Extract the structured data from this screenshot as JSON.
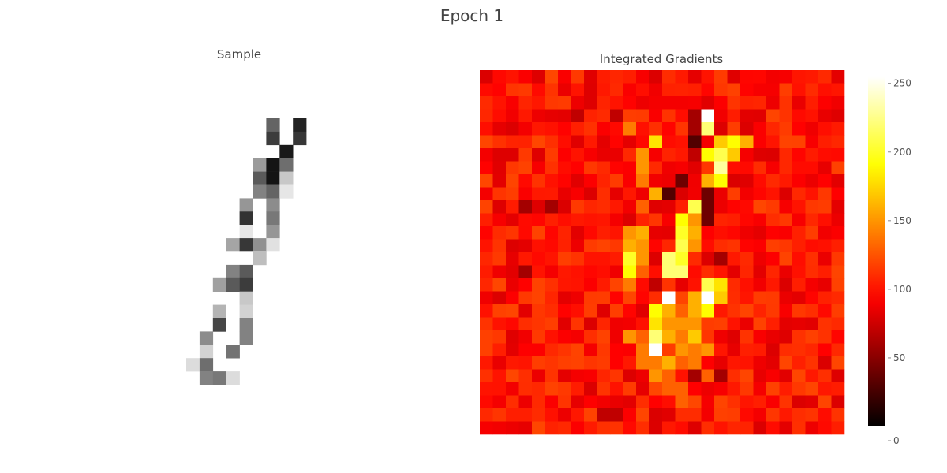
{
  "title": "Epoch 1",
  "chart_data": [
    {
      "type": "heatmap",
      "title": "Sample",
      "colormap": "greys-reversed-partial",
      "background": "#ffffff",
      "grid_size": 28,
      "cells": [
        [
          3,
          6,
          100
        ],
        [
          3,
          8,
          35
        ],
        [
          4,
          6,
          60
        ],
        [
          4,
          8,
          55
        ],
        [
          5,
          7,
          25
        ],
        [
          6,
          5,
          155
        ],
        [
          6,
          6,
          20
        ],
        [
          6,
          7,
          110
        ],
        [
          7,
          5,
          90
        ],
        [
          7,
          6,
          20
        ],
        [
          7,
          7,
          200
        ],
        [
          8,
          5,
          130
        ],
        [
          8,
          6,
          100
        ],
        [
          8,
          7,
          230
        ],
        [
          9,
          4,
          150
        ],
        [
          9,
          6,
          140
        ],
        [
          10,
          4,
          50
        ],
        [
          10,
          6,
          120
        ],
        [
          11,
          4,
          230
        ],
        [
          11,
          6,
          150
        ],
        [
          12,
          3,
          165
        ],
        [
          12,
          4,
          55
        ],
        [
          12,
          5,
          145
        ],
        [
          12,
          6,
          225
        ],
        [
          13,
          5,
          190
        ],
        [
          14,
          3,
          130
        ],
        [
          14,
          4,
          90
        ],
        [
          15,
          2,
          160
        ],
        [
          15,
          3,
          90
        ],
        [
          15,
          4,
          60
        ],
        [
          16,
          4,
          200
        ],
        [
          17,
          2,
          180
        ],
        [
          17,
          4,
          210
        ],
        [
          18,
          2,
          70
        ],
        [
          18,
          4,
          130
        ],
        [
          19,
          1,
          140
        ],
        [
          19,
          4,
          130
        ],
        [
          20,
          1,
          210
        ],
        [
          20,
          3,
          115
        ],
        [
          21,
          0,
          220
        ],
        [
          21,
          1,
          110
        ],
        [
          22,
          1,
          130
        ],
        [
          22,
          2,
          120
        ],
        [
          22,
          3,
          220
        ]
      ]
    },
    {
      "type": "heatmap",
      "title": "Integrated Gradients",
      "colormap": "hot",
      "grid_size": 28,
      "base_value": 100,
      "cells": [
        [
          3,
          17,
          255
        ],
        [
          3,
          16,
          60
        ],
        [
          3,
          10,
          70
        ],
        [
          3,
          7,
          70
        ],
        [
          4,
          16,
          60
        ],
        [
          4,
          17,
          220
        ],
        [
          4,
          11,
          140
        ],
        [
          5,
          16,
          30
        ],
        [
          5,
          13,
          180
        ],
        [
          5,
          15,
          100
        ],
        [
          5,
          18,
          170
        ],
        [
          5,
          19,
          190
        ],
        [
          5,
          20,
          160
        ],
        [
          6,
          13,
          90
        ],
        [
          6,
          16,
          70
        ],
        [
          6,
          17,
          190
        ],
        [
          6,
          18,
          210
        ],
        [
          6,
          19,
          170
        ],
        [
          6,
          12,
          150
        ],
        [
          7,
          15,
          90
        ],
        [
          7,
          18,
          230
        ],
        [
          7,
          12,
          150
        ],
        [
          8,
          15,
          40
        ],
        [
          8,
          18,
          190
        ],
        [
          8,
          17,
          160
        ],
        [
          8,
          12,
          140
        ],
        [
          9,
          14,
          30
        ],
        [
          9,
          15,
          80
        ],
        [
          9,
          17,
          40
        ],
        [
          9,
          13,
          160
        ],
        [
          10,
          16,
          210
        ],
        [
          10,
          17,
          40
        ],
        [
          10,
          3,
          60
        ],
        [
          10,
          5,
          60
        ],
        [
          10,
          12,
          130
        ],
        [
          11,
          15,
          190
        ],
        [
          11,
          16,
          150
        ],
        [
          11,
          17,
          40
        ],
        [
          12,
          15,
          200
        ],
        [
          12,
          16,
          160
        ],
        [
          12,
          11,
          150
        ],
        [
          12,
          12,
          160
        ],
        [
          13,
          15,
          210
        ],
        [
          13,
          16,
          150
        ],
        [
          13,
          11,
          160
        ],
        [
          13,
          12,
          150
        ],
        [
          13,
          18,
          110
        ],
        [
          14,
          14,
          220
        ],
        [
          14,
          15,
          200
        ],
        [
          14,
          11,
          200
        ],
        [
          14,
          12,
          150
        ],
        [
          14,
          18,
          60
        ],
        [
          15,
          14,
          220
        ],
        [
          15,
          15,
          220
        ],
        [
          15,
          11,
          190
        ],
        [
          15,
          12,
          130
        ],
        [
          15,
          3,
          60
        ],
        [
          16,
          13,
          70
        ],
        [
          16,
          16,
          100
        ],
        [
          16,
          17,
          210
        ],
        [
          16,
          18,
          180
        ],
        [
          16,
          11,
          140
        ],
        [
          17,
          14,
          255
        ],
        [
          17,
          16,
          160
        ],
        [
          17,
          17,
          255
        ],
        [
          17,
          18,
          170
        ],
        [
          18,
          13,
          190
        ],
        [
          18,
          14,
          160
        ],
        [
          18,
          16,
          160
        ],
        [
          18,
          17,
          190
        ],
        [
          18,
          15,
          130
        ],
        [
          19,
          13,
          180
        ],
        [
          19,
          14,
          150
        ],
        [
          19,
          15,
          150
        ],
        [
          19,
          16,
          150
        ],
        [
          20,
          13,
          220
        ],
        [
          20,
          14,
          160
        ],
        [
          20,
          15,
          140
        ],
        [
          20,
          16,
          170
        ],
        [
          20,
          11,
          150
        ],
        [
          20,
          12,
          130
        ],
        [
          21,
          13,
          255
        ],
        [
          21,
          15,
          150
        ],
        [
          21,
          16,
          140
        ],
        [
          21,
          17,
          150
        ],
        [
          21,
          12,
          140
        ],
        [
          22,
          13,
          140
        ],
        [
          22,
          14,
          160
        ],
        [
          22,
          15,
          130
        ],
        [
          22,
          16,
          140
        ],
        [
          22,
          12,
          140
        ],
        [
          23,
          13,
          150
        ],
        [
          23,
          15,
          100
        ],
        [
          23,
          16,
          60
        ],
        [
          23,
          17,
          130
        ],
        [
          23,
          18,
          60
        ],
        [
          23,
          14,
          130
        ],
        [
          24,
          13,
          120
        ],
        [
          24,
          14,
          130
        ],
        [
          24,
          15,
          130
        ],
        [
          25,
          15,
          130
        ],
        [
          25,
          16,
          120
        ],
        [
          26,
          9,
          70
        ],
        [
          26,
          10,
          70
        ],
        [
          26,
          15,
          110
        ],
        [
          26,
          16,
          110
        ]
      ],
      "colorbar": {
        "min": 0,
        "max": 255,
        "ticks": [
          "0",
          "50",
          "100",
          "150",
          "200",
          "250"
        ],
        "tick_values": [
          0,
          50,
          100,
          150,
          200,
          250
        ]
      }
    }
  ]
}
